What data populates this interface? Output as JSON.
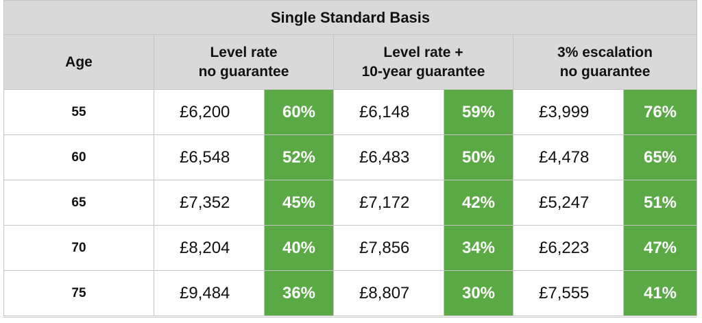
{
  "title": "Single Standard Basis",
  "headers": {
    "age": "Age",
    "groups": [
      {
        "line1": "Level rate",
        "line2": "no guarantee"
      },
      {
        "line1": "Level rate +",
        "line2": "10-year guarantee"
      },
      {
        "line1": "3% escalation",
        "line2": "no guarantee"
      }
    ]
  },
  "rows": [
    {
      "age": "55",
      "cells": [
        {
          "amount": "£6,200",
          "pct": "60%"
        },
        {
          "amount": "£6,148",
          "pct": "59%"
        },
        {
          "amount": "£3,999",
          "pct": "76%"
        }
      ]
    },
    {
      "age": "60",
      "cells": [
        {
          "amount": "£6,548",
          "pct": "52%"
        },
        {
          "amount": "£6,483",
          "pct": "50%"
        },
        {
          "amount": "£4,478",
          "pct": "65%"
        }
      ]
    },
    {
      "age": "65",
      "cells": [
        {
          "amount": "£7,352",
          "pct": "45%"
        },
        {
          "amount": "£7,172",
          "pct": "42%"
        },
        {
          "amount": "£5,247",
          "pct": "51%"
        }
      ]
    },
    {
      "age": "70",
      "cells": [
        {
          "amount": "£8,204",
          "pct": "40%"
        },
        {
          "amount": "£7,856",
          "pct": "34%"
        },
        {
          "amount": "£6,223",
          "pct": "47%"
        }
      ]
    },
    {
      "age": "75",
      "cells": [
        {
          "amount": "£9,484",
          "pct": "36%"
        },
        {
          "amount": "£8,807",
          "pct": "30%"
        },
        {
          "amount": "£7,555",
          "pct": "41%"
        }
      ]
    }
  ],
  "colors": {
    "header_bg": "#d9d9d9",
    "pct_bg": "#5aa944",
    "border": "#c4c4c4"
  }
}
